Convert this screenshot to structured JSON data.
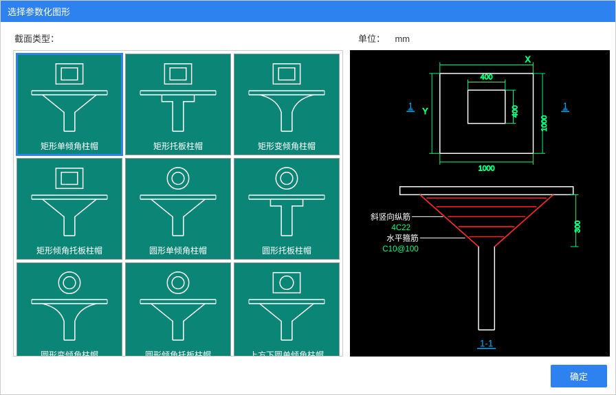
{
  "window": {
    "title": "选择参数化图形"
  },
  "labels": {
    "section_type": "截面类型：",
    "unit_label": "单位：",
    "unit_value": "mm"
  },
  "thumbnails": [
    {
      "shape": "square",
      "profile": "trapezoid",
      "caption": "矩形单倾角柱帽",
      "selected": true
    },
    {
      "shape": "square",
      "profile": "slab",
      "caption": "矩形托板柱帽"
    },
    {
      "shape": "square",
      "profile": "curve",
      "caption": "矩形变倾角柱帽"
    },
    {
      "shape": "square",
      "profile": "trapezoid",
      "caption": "矩形倾角托板柱帽"
    },
    {
      "shape": "circle",
      "profile": "trapezoid",
      "caption": "圆形单倾角柱帽"
    },
    {
      "shape": "circle",
      "profile": "slab",
      "caption": "圆形托板柱帽"
    },
    {
      "shape": "circle",
      "profile": "curve",
      "caption": "圆形变倾角柱帽"
    },
    {
      "shape": "circle",
      "profile": "trapezoid",
      "caption": "圆形倾角托板柱帽"
    },
    {
      "shape": "circle-in-square",
      "profile": "trapezoid",
      "caption": "上方下圆单倾角柱帽"
    }
  ],
  "preview": {
    "dims": {
      "X": "X",
      "Y": "Y",
      "top_inner_w": "400",
      "top_inner_h": "400",
      "top_outer_w": "1000",
      "top_outer_h": "1000",
      "drop_h": "300",
      "section_label": "1",
      "bottom_label": "1-1"
    },
    "annotations": {
      "rebar_vert": "斜竖向纵筋",
      "rebar_vert_spec": "4C22",
      "stirrup": "水平箍筋",
      "stirrup_spec": "C10@100"
    },
    "colors": {
      "bg": "#000000",
      "line": "#ffffff",
      "dim": "#00ff7f",
      "rebar": "#ff2020",
      "section": "#00b0ff"
    }
  },
  "buttons": {
    "ok": "确定"
  }
}
